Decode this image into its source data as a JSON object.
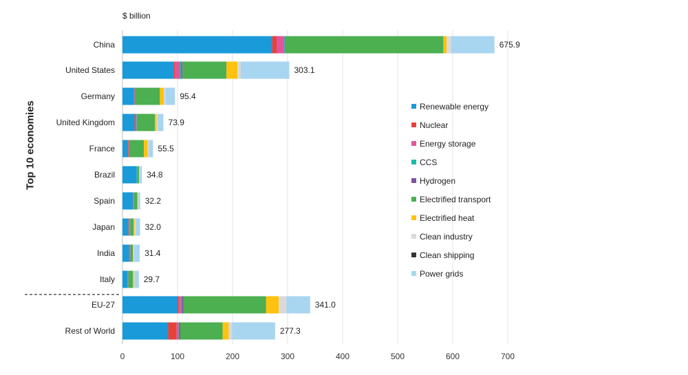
{
  "chart_data": {
    "type": "bar",
    "orientation": "horizontal",
    "stacked": true,
    "unit_label": "$ billion",
    "group_label": "Top 10 economies",
    "categories": [
      "China",
      "United States",
      "Germany",
      "United Kingdom",
      "France",
      "Brazil",
      "Spain",
      "Japan",
      "India",
      "Italy",
      "EU-27",
      "Rest of World"
    ],
    "totals": [
      "675.9",
      "303.1",
      "95.4",
      "73.9",
      "55.5",
      "34.8",
      "32.2",
      "32.0",
      "31.4",
      "29.7",
      "341.0",
      "277.3"
    ],
    "xlim": [
      0,
      700
    ],
    "xticks": [
      0,
      100,
      200,
      300,
      400,
      500,
      600,
      700
    ],
    "grid": true,
    "legend_position": "right",
    "series": [
      {
        "name": "Renewable energy",
        "color": "#1a9ad9",
        "values": [
          272,
          93,
          20,
          22,
          10,
          26,
          19,
          11,
          12,
          9,
          100,
          83
        ]
      },
      {
        "name": "Nuclear",
        "color": "#e8413a",
        "values": [
          8,
          2,
          1,
          2,
          1,
          0,
          0,
          1,
          1,
          0,
          2,
          15
        ]
      },
      {
        "name": "Energy storage",
        "color": "#e2559b",
        "values": [
          14,
          10,
          1,
          1,
          1,
          0,
          1,
          1,
          1,
          1,
          4,
          4
        ]
      },
      {
        "name": "CCS",
        "color": "#1bb9ad",
        "values": [
          1,
          2,
          0.5,
          0.5,
          0.5,
          0.5,
          0.5,
          0.5,
          0.5,
          0.5,
          2,
          1
        ]
      },
      {
        "name": "Hydrogen",
        "color": "#7e52a0",
        "values": [
          1,
          2,
          0.5,
          0.5,
          0.5,
          0.5,
          0.5,
          0.5,
          0.5,
          0.5,
          3,
          2
        ]
      },
      {
        "name": "Electrified transport",
        "color": "#4caf50",
        "values": [
          287,
          80,
          45,
          33,
          26,
          3,
          6,
          6,
          4,
          8,
          150,
          77
        ]
      },
      {
        "name": "Electrified heat",
        "color": "#ffc20e",
        "values": [
          6,
          20,
          7,
          3,
          7,
          1,
          1,
          2,
          1,
          2,
          23,
          11
        ]
      },
      {
        "name": "Clean industry",
        "color": "#d9d9d9",
        "values": [
          8,
          6,
          3,
          2,
          2,
          1,
          1,
          2,
          1,
          1,
          14,
          6
        ]
      },
      {
        "name": "Clean shipping",
        "color": "#333333",
        "values": [
          0,
          0,
          0,
          0,
          0,
          0,
          0,
          0,
          0,
          0,
          0,
          0
        ]
      },
      {
        "name": "Power grids",
        "color": "#a8d5f0",
        "values": [
          78.9,
          88.1,
          17.4,
          10.4,
          7.5,
          3.3,
          3.2,
          8.0,
          10.4,
          7.7,
          43.0,
          78.3
        ]
      }
    ]
  }
}
